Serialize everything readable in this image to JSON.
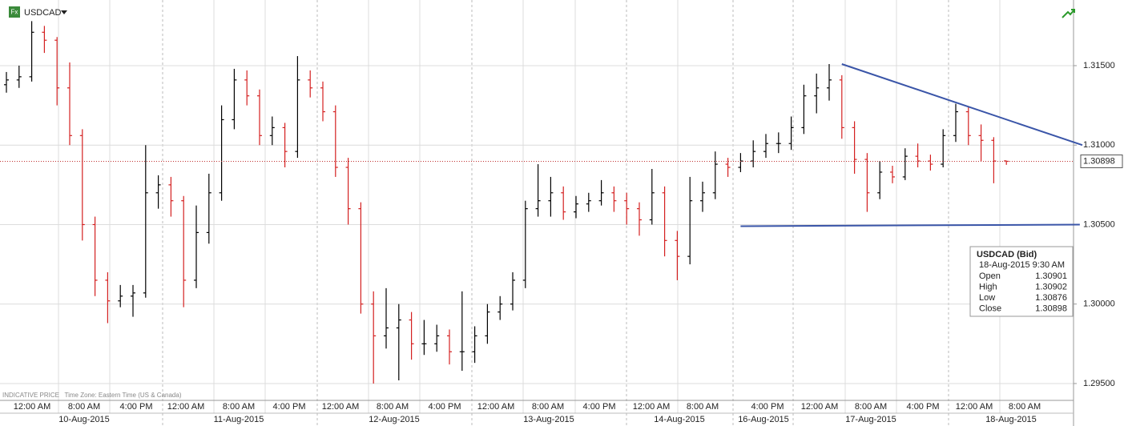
{
  "chart_data": {
    "type": "ohlc",
    "symbol": "USDCAD",
    "badge": "Fx",
    "footer": "INDICATIVE PRICE   Time Zone: Eastern Time (US & Canada)",
    "up_color": "#000000",
    "down_color": "#d42020",
    "trend_color": "#3a55a8",
    "ylim": [
      1.29394,
      1.31913
    ],
    "yticks": [
      {
        "value": 1.295,
        "label": "1.29500"
      },
      {
        "value": 1.3,
        "label": "1.30000"
      },
      {
        "value": 1.305,
        "label": "1.30500"
      },
      {
        "value": 1.31,
        "label": "1.31000"
      },
      {
        "value": 1.315,
        "label": "1.31500"
      }
    ],
    "time_labels": [
      "12:00 AM",
      "8:00 AM",
      "4:00 PM",
      "12:00 AM",
      "8:00 AM",
      "4:00 PM",
      "12:00 AM",
      "8:00 AM",
      "4:00 PM",
      "12:00 AM",
      "8:00 AM",
      "4:00 PM",
      "12:00 AM",
      "8:00 AM",
      "4:00 PM",
      "12:00 AM",
      "8:00 AM",
      "4:00 PM",
      "12:00 AM",
      "8:00 AM"
    ],
    "date_labels": [
      "10-Aug-2015",
      "11-Aug-2015",
      "12-Aug-2015",
      "13-Aug-2015",
      "14-Aug-2015",
      "16-Aug-2015",
      "17-Aug-2015",
      "18-Aug-2015"
    ],
    "ohlc": [
      [
        1.3138,
        1.3146,
        1.3133,
        1.3141
      ],
      [
        1.3141,
        1.315,
        1.3136,
        1.3143
      ],
      [
        1.3143,
        1.3178,
        1.314,
        1.3171
      ],
      [
        1.3171,
        1.3175,
        1.3158,
        1.3166
      ],
      [
        1.3166,
        1.3168,
        1.3125,
        1.3136
      ],
      [
        1.3136,
        1.3152,
        1.31,
        1.3106
      ],
      [
        1.3106,
        1.311,
        1.304,
        1.305
      ],
      [
        1.305,
        1.3055,
        1.3005,
        1.3015
      ],
      [
        1.3015,
        1.302,
        1.2988,
        1.3002
      ],
      [
        1.3002,
        1.3012,
        1.2998,
        1.3005
      ],
      [
        1.3005,
        1.3012,
        1.2992,
        1.3007
      ],
      [
        1.3007,
        1.31,
        1.3004,
        1.307
      ],
      [
        1.307,
        1.3081,
        1.306,
        1.3075
      ],
      [
        1.3075,
        1.308,
        1.3055,
        1.3065
      ],
      [
        1.3065,
        1.3068,
        1.2998,
        1.3015
      ],
      [
        1.3015,
        1.3062,
        1.301,
        1.3045
      ],
      [
        1.3045,
        1.3082,
        1.3038,
        1.307
      ],
      [
        1.307,
        1.3125,
        1.3065,
        1.3116
      ],
      [
        1.3116,
        1.3148,
        1.311,
        1.3141
      ],
      [
        1.3141,
        1.3147,
        1.3125,
        1.3131
      ],
      [
        1.3131,
        1.3135,
        1.31,
        1.3106
      ],
      [
        1.3106,
        1.3118,
        1.31,
        1.3111
      ],
      [
        1.3111,
        1.3114,
        1.3086,
        1.3096
      ],
      [
        1.3096,
        1.3156,
        1.3092,
        1.3141
      ],
      [
        1.3141,
        1.3147,
        1.313,
        1.3136
      ],
      [
        1.3136,
        1.314,
        1.3115,
        1.3121
      ],
      [
        1.3121,
        1.3125,
        1.308,
        1.3086
      ],
      [
        1.3086,
        1.3092,
        1.305,
        1.306
      ],
      [
        1.306,
        1.3064,
        1.2994,
        1.3
      ],
      [
        1.3,
        1.3008,
        1.295,
        1.298
      ],
      [
        1.298,
        1.301,
        1.2972,
        1.2985
      ],
      [
        1.2985,
        1.3,
        1.2952,
        1.299
      ],
      [
        1.299,
        1.2995,
        1.2965,
        1.2975
      ],
      [
        1.2975,
        1.299,
        1.2968,
        1.2975
      ],
      [
        1.2975,
        1.2987,
        1.297,
        1.298
      ],
      [
        1.298,
        1.2984,
        1.2962,
        1.297
      ],
      [
        1.297,
        1.3008,
        1.2958,
        1.297
      ],
      [
        1.297,
        1.2986,
        1.2963,
        1.298
      ],
      [
        1.298,
        1.3,
        1.2975,
        1.2995
      ],
      [
        1.2995,
        1.3005,
        1.299,
        1.3
      ],
      [
        1.3,
        1.302,
        1.2996,
        1.3015
      ],
      [
        1.3015,
        1.3065,
        1.301,
        1.306
      ],
      [
        1.306,
        1.3088,
        1.3055,
        1.3065
      ],
      [
        1.3065,
        1.308,
        1.3055,
        1.307
      ],
      [
        1.307,
        1.3074,
        1.3053,
        1.3058
      ],
      [
        1.3058,
        1.3068,
        1.3054,
        1.3063
      ],
      [
        1.3063,
        1.307,
        1.3058,
        1.3065
      ],
      [
        1.3065,
        1.3078,
        1.3062,
        1.307
      ],
      [
        1.307,
        1.3074,
        1.3058,
        1.3065
      ],
      [
        1.3065,
        1.307,
        1.305,
        1.306
      ],
      [
        1.306,
        1.3064,
        1.3043,
        1.3053
      ],
      [
        1.3053,
        1.3085,
        1.305,
        1.307
      ],
      [
        1.307,
        1.3074,
        1.303,
        1.304
      ],
      [
        1.304,
        1.3046,
        1.3015,
        1.303
      ],
      [
        1.303,
        1.308,
        1.3025,
        1.3065
      ],
      [
        1.3065,
        1.3077,
        1.3058,
        1.307
      ],
      [
        1.307,
        1.3096,
        1.3066,
        1.3088
      ],
      [
        1.3088,
        1.3092,
        1.308,
        1.3086
      ],
      [
        1.3086,
        1.3095,
        1.3083,
        1.309
      ],
      [
        1.309,
        1.3103,
        1.3086,
        1.3096
      ],
      [
        1.3096,
        1.3107,
        1.3092,
        1.3101
      ],
      [
        1.3101,
        1.3108,
        1.3095,
        1.3101
      ],
      [
        1.3101,
        1.3118,
        1.3097,
        1.3111
      ],
      [
        1.3111,
        1.3138,
        1.3107,
        1.3131
      ],
      [
        1.3131,
        1.3145,
        1.312,
        1.3136
      ],
      [
        1.3136,
        1.3151,
        1.3128,
        1.3141
      ],
      [
        1.3141,
        1.3144,
        1.3104,
        1.3111
      ],
      [
        1.3111,
        1.3115,
        1.3082,
        1.3091
      ],
      [
        1.3091,
        1.3095,
        1.3058,
        1.307
      ],
      [
        1.307,
        1.309,
        1.3066,
        1.3083
      ],
      [
        1.3083,
        1.3087,
        1.3076,
        1.308
      ],
      [
        1.308,
        1.3098,
        1.3078,
        1.3093
      ],
      [
        1.3093,
        1.3101,
        1.3086,
        1.309
      ],
      [
        1.309,
        1.3094,
        1.3084,
        1.3088
      ],
      [
        1.3088,
        1.311,
        1.3086,
        1.3106
      ],
      [
        1.3106,
        1.3126,
        1.3102,
        1.3121
      ],
      [
        1.3121,
        1.3124,
        1.31,
        1.3106
      ],
      [
        1.3106,
        1.3113,
        1.309,
        1.3103
      ],
      [
        1.3103,
        1.3105,
        1.3076,
        1.309
      ],
      [
        1.30901,
        1.30902,
        1.30876,
        1.30898
      ]
    ],
    "trendlines": [
      {
        "bars": [
          66,
          85
        ],
        "prices": [
          1.3151,
          1.31
        ]
      },
      {
        "bars": [
          58,
          84.8
        ],
        "prices": [
          1.3049,
          1.305
        ]
      }
    ],
    "info_box": {
      "title": "USDCAD (Bid)",
      "time": "18-Aug-2015 9:30 AM",
      "fields": [
        "Open",
        "High",
        "Low",
        "Close"
      ]
    }
  }
}
